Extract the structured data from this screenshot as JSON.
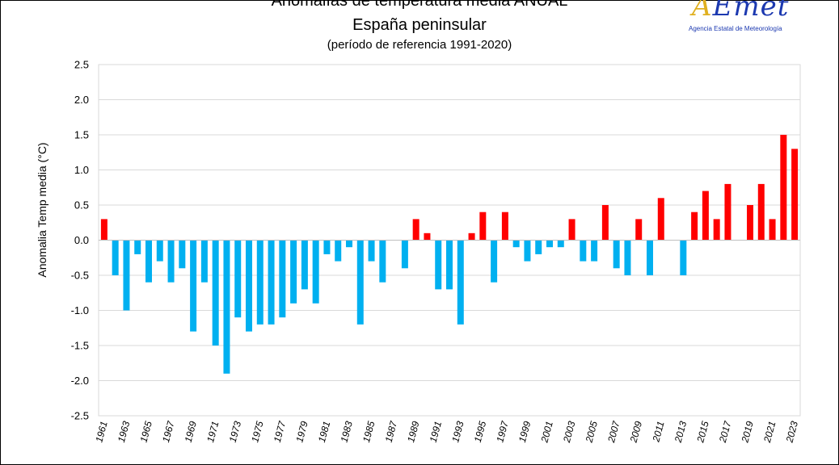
{
  "title_line1": "Anomalías de temperatura media ANUAL",
  "title_line2": "España peninsular",
  "title_line3": "(período de referencia 1991-2020)",
  "logo": {
    "name": "AEMET",
    "subtitle": "Agencia Estatal de Meteorología"
  },
  "chart_data": {
    "type": "bar",
    "title": "Anomalías de temperatura media ANUAL",
    "subtitle": "España peninsular (período de referencia 1991-2020)",
    "xlabel": "",
    "ylabel": "Anomalia Temp media (°C)",
    "ylim": [
      -2.5,
      2.5
    ],
    "yticks": [
      "2.5",
      "2.0",
      "1.5",
      "1.0",
      "0.5",
      "0.0",
      "-0.5",
      "-1.0",
      "-1.5",
      "-2.0",
      "-2.5"
    ],
    "positive_color": "#ff0000",
    "negative_color": "#00b0f0",
    "grid": true,
    "categories": [
      1961,
      1962,
      1963,
      1964,
      1965,
      1966,
      1967,
      1968,
      1969,
      1970,
      1971,
      1972,
      1973,
      1974,
      1975,
      1976,
      1977,
      1978,
      1979,
      1980,
      1981,
      1982,
      1983,
      1984,
      1985,
      1986,
      1987,
      1988,
      1989,
      1990,
      1991,
      1992,
      1993,
      1994,
      1995,
      1996,
      1997,
      1998,
      1999,
      2000,
      2001,
      2002,
      2003,
      2004,
      2005,
      2006,
      2007,
      2008,
      2009,
      2010,
      2011,
      2012,
      2013,
      2014,
      2015,
      2016,
      2017,
      2018,
      2019,
      2020,
      2021,
      2022,
      2023
    ],
    "values": [
      0.3,
      -0.5,
      -1.0,
      -0.2,
      -0.6,
      -0.3,
      -0.6,
      -0.4,
      -1.3,
      -0.6,
      -1.5,
      -1.9,
      -1.1,
      -1.3,
      -1.2,
      -1.2,
      -1.1,
      -0.9,
      -0.7,
      -0.9,
      -0.2,
      -0.3,
      -0.1,
      -1.2,
      -0.3,
      -0.6,
      0.0,
      -0.4,
      0.3,
      0.1,
      -0.7,
      -0.7,
      -1.2,
      0.1,
      0.4,
      -0.6,
      0.4,
      -0.1,
      -0.3,
      -0.2,
      -0.1,
      -0.1,
      0.3,
      -0.3,
      -0.3,
      0.5,
      -0.4,
      -0.5,
      0.3,
      -0.5,
      0.6,
      0.0,
      -0.5,
      0.4,
      0.7,
      0.3,
      0.8,
      0.0,
      0.5,
      0.8,
      0.3,
      1.5,
      1.3
    ],
    "x_tick_labels": [
      "1961",
      "1963",
      "1965",
      "1967",
      "1969",
      "1971",
      "1973",
      "1975",
      "1977",
      "1979",
      "1981",
      "1983",
      "1985",
      "1987",
      "1989",
      "1991",
      "1993",
      "1995",
      "1997",
      "1999",
      "2001",
      "2003",
      "2005",
      "2007",
      "2009",
      "2011",
      "2013",
      "2015",
      "2017",
      "2019",
      "2021",
      "2023"
    ]
  }
}
